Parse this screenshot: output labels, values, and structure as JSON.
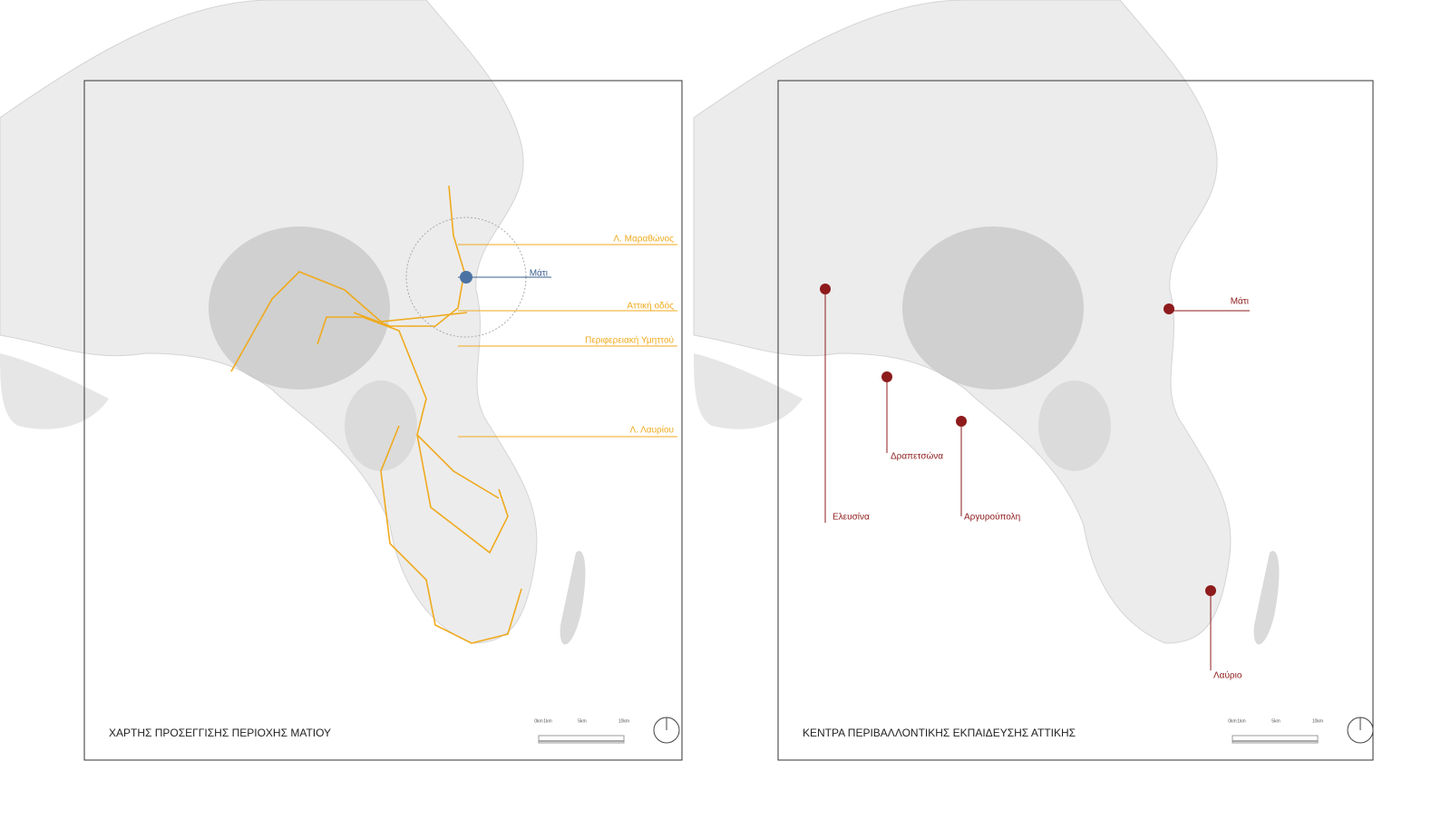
{
  "panels": [
    {
      "title": "ΧΑΡΤΗΣ ΠΡΟΣΕΓΓΙΣΗΣ ΠΕΡΙΟΧΗΣ ΜΑΤΙΟΥ",
      "labels": [
        "Λ. Μαραθώνος",
        "Μάτι",
        "Αττική οδός",
        "Περιφερειακή Υμηττού",
        "Λ. Λαυρίου"
      ],
      "scale": [
        "0km",
        "1km",
        "5km",
        "10km"
      ]
    },
    {
      "title": "ΚΕΝΤΡΑ ΠΕΡΙΒΑΛΛΟΝΤΙΚΗΣ ΕΚΠΑΙΔΕΥΣΗΣ ΑΤΤΙΚΗΣ",
      "labels": [
        "Μάτι",
        "Ελευσίνα",
        "Δραπετσώνα",
        "Αργυρούπολη",
        "Λαύριο"
      ],
      "scale": [
        "0km",
        "1km",
        "5km",
        "10km"
      ]
    }
  ]
}
